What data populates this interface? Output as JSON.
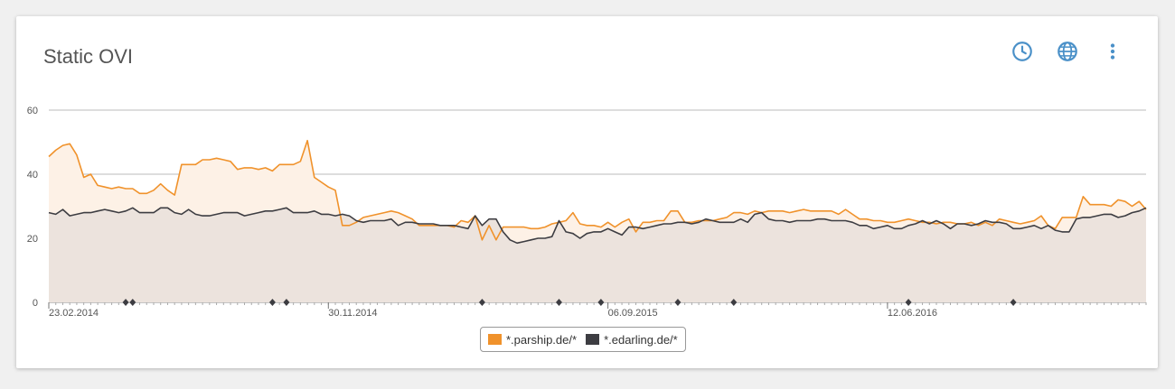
{
  "header": {
    "title": "Static OVI"
  },
  "icons": {
    "clock": "clock-icon",
    "globe": "globe-icon",
    "menu": "more-vert-icon"
  },
  "colors": {
    "accent": "#4a90c8",
    "parship": "#f0922b",
    "edarling": "#3d3d42",
    "parship_fill": "#fdf1e6",
    "edarling_fill": "#ece3dd"
  },
  "chart_data": {
    "type": "area",
    "title": "Static OVI",
    "xlabel": "",
    "ylabel": "",
    "ylim": [
      0,
      60
    ],
    "yticks": [
      "0",
      "20",
      "40",
      "60"
    ],
    "x_start": "23.02.2014",
    "x_step_days": 7,
    "xtick_labels": [
      {
        "label": "23.02.2014",
        "index": 0
      },
      {
        "label": "30.11.2014",
        "index": 40
      },
      {
        "label": "06.09.2015",
        "index": 80
      },
      {
        "label": "12.06.2016",
        "index": 120
      }
    ],
    "markers_index": [
      11,
      12,
      32,
      34,
      62,
      73,
      79,
      90,
      98,
      123,
      138
    ],
    "grid": true,
    "legend": "bottom-center",
    "series": [
      {
        "name": "*.parship.de/*",
        "values": [
          45.5,
          47.5,
          49,
          49.5,
          46,
          39,
          40,
          36.5,
          36,
          35.5,
          36,
          35.5,
          35.5,
          34,
          34,
          35,
          37,
          35,
          33.5,
          43,
          43,
          43,
          44.5,
          44.5,
          45,
          44.5,
          44,
          41.5,
          42,
          42,
          41.5,
          42,
          41,
          43,
          43,
          43,
          44,
          50.5,
          39,
          37.5,
          36,
          35,
          24,
          24,
          25,
          26.5,
          27,
          27.5,
          28,
          28.5,
          28,
          27,
          26,
          24,
          24,
          24,
          24,
          24,
          23.5,
          25.5,
          25,
          27,
          19.5,
          24,
          19.5,
          23.5,
          23.5,
          23.5,
          23.5,
          23,
          23,
          23.5,
          24.5,
          25,
          25.5,
          28,
          24.5,
          24,
          24,
          23.5,
          25,
          23.5,
          25,
          26,
          22,
          25,
          25,
          25.5,
          25.5,
          28.5,
          28.5,
          25,
          25,
          25.5,
          25.5,
          25.5,
          26,
          26.5,
          28,
          28,
          27.5,
          28.5,
          28,
          28.5,
          28.5,
          28.5,
          28,
          28.5,
          29,
          28.5,
          28.5,
          28.5,
          28.5,
          27.5,
          29,
          27.5,
          26,
          26,
          25.5,
          25.5,
          25,
          25,
          25.5,
          26,
          25.5,
          25,
          25,
          24.5,
          25,
          25,
          24.5,
          24.5,
          25,
          24,
          25,
          24,
          26,
          25.5,
          25,
          24.5,
          25,
          25.5,
          27,
          24,
          23,
          26.5,
          26.5,
          26.5,
          33,
          30.5,
          30.5,
          30.5,
          30,
          32,
          31.5,
          30,
          31.5,
          29
        ]
      },
      {
        "name": "*.edarling.de/*",
        "values": [
          28,
          27.5,
          29,
          27,
          27.5,
          28,
          28,
          28.5,
          29,
          28.5,
          28,
          28.5,
          29.5,
          28,
          28,
          28,
          29.5,
          29.5,
          28,
          27.5,
          29,
          27.5,
          27,
          27,
          27.5,
          28,
          28,
          28,
          27,
          27.5,
          28,
          28.5,
          28.5,
          29,
          29.5,
          28,
          28,
          28,
          28.5,
          27.5,
          27.5,
          27,
          27.5,
          27,
          25.5,
          25,
          25.5,
          25.5,
          25.5,
          26,
          24,
          25,
          25,
          24.5,
          24.5,
          24.5,
          24,
          24,
          24,
          23.5,
          23,
          27,
          24,
          26,
          26,
          22,
          19.5,
          18.5,
          19,
          19.5,
          20,
          20,
          20.5,
          25.5,
          22,
          21.5,
          20,
          21.5,
          22,
          22,
          23,
          22,
          21,
          23.5,
          23.5,
          23,
          23.5,
          24,
          24.5,
          24.5,
          25,
          25,
          24.5,
          25,
          26,
          25.5,
          25,
          25,
          25,
          26,
          25,
          27.5,
          28,
          26,
          25.5,
          25.5,
          25,
          25.5,
          25.5,
          25.5,
          26,
          26,
          25.5,
          25.5,
          25.5,
          25,
          24,
          24,
          23,
          23.5,
          24,
          23,
          23,
          24,
          24.5,
          25.5,
          24.5,
          25.5,
          24.5,
          23,
          24.5,
          24.5,
          24,
          24.5,
          25.5,
          25,
          25,
          24.5,
          23,
          23,
          23.5,
          24,
          23,
          24,
          22.5,
          22,
          22,
          26,
          26.5,
          26.5,
          27,
          27.5,
          27.5,
          26.5,
          27,
          28,
          28.5,
          29.5
        ]
      }
    ]
  },
  "legend": {
    "items": [
      {
        "label": "*.parship.de/*"
      },
      {
        "label": "*.edarling.de/*"
      }
    ]
  }
}
